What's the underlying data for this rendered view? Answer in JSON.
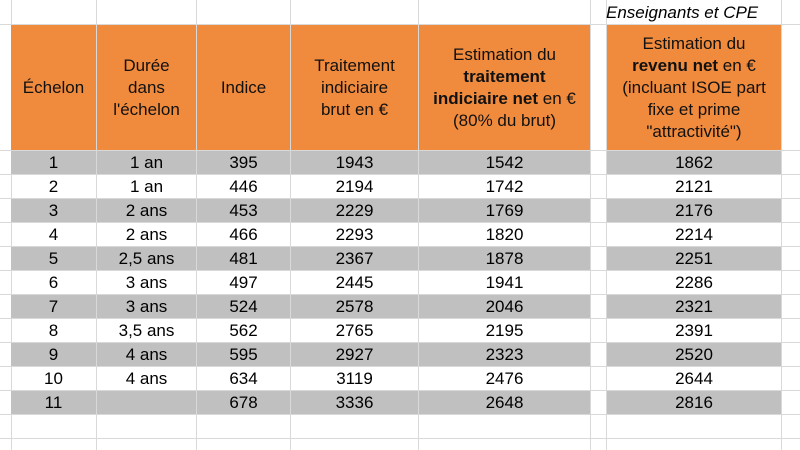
{
  "caption": "Enseignants et CPE",
  "headers": {
    "echelon": "Échelon",
    "duree": [
      "Durée",
      "dans",
      "l'échelon"
    ],
    "indice": "Indice",
    "traitement_brut": [
      "Traitement",
      "indiciaire",
      "brut en €"
    ],
    "estimation_net": {
      "l1": "Estimation du",
      "l2_bold": "traitement",
      "l3_bold": "indiciaire net",
      "l3_rest": " en €",
      "l4": "(80% du brut)"
    },
    "estimation_revenu": {
      "l1": "Estimation du",
      "l2_bold": "revenu net",
      "l2_rest": " en €",
      "l3": "(incluant ISOE part",
      "l4": "fixe et prime",
      "l5": "\"attractivité\")"
    }
  },
  "rows": [
    {
      "echelon": "1",
      "duree": "1 an",
      "indice": "395",
      "brut": "1943",
      "net": "1542",
      "revenu": "1862"
    },
    {
      "echelon": "2",
      "duree": "1 an",
      "indice": "446",
      "brut": "2194",
      "net": "1742",
      "revenu": "2121"
    },
    {
      "echelon": "3",
      "duree": "2 ans",
      "indice": "453",
      "brut": "2229",
      "net": "1769",
      "revenu": "2176"
    },
    {
      "echelon": "4",
      "duree": "2 ans",
      "indice": "466",
      "brut": "2293",
      "net": "1820",
      "revenu": "2214"
    },
    {
      "echelon": "5",
      "duree": "2,5 ans",
      "indice": "481",
      "brut": "2367",
      "net": "1878",
      "revenu": "2251"
    },
    {
      "echelon": "6",
      "duree": "3 ans",
      "indice": "497",
      "brut": "2445",
      "net": "1941",
      "revenu": "2286"
    },
    {
      "echelon": "7",
      "duree": "3 ans",
      "indice": "524",
      "brut": "2578",
      "net": "2046",
      "revenu": "2321"
    },
    {
      "echelon": "8",
      "duree": "3,5 ans",
      "indice": "562",
      "brut": "2765",
      "net": "2195",
      "revenu": "2391"
    },
    {
      "echelon": "9",
      "duree": "4 ans",
      "indice": "595",
      "brut": "2927",
      "net": "2323",
      "revenu": "2520"
    },
    {
      "echelon": "10",
      "duree": "4 ans",
      "indice": "634",
      "brut": "3119",
      "net": "2476",
      "revenu": "2644"
    },
    {
      "echelon": "11",
      "duree": "",
      "indice": "678",
      "brut": "3336",
      "net": "2648",
      "revenu": "2816"
    }
  ],
  "colors": {
    "header_orange": "#f08a3c",
    "row_shade": "#c0c0c0",
    "gridline": "#d9d9d9"
  }
}
